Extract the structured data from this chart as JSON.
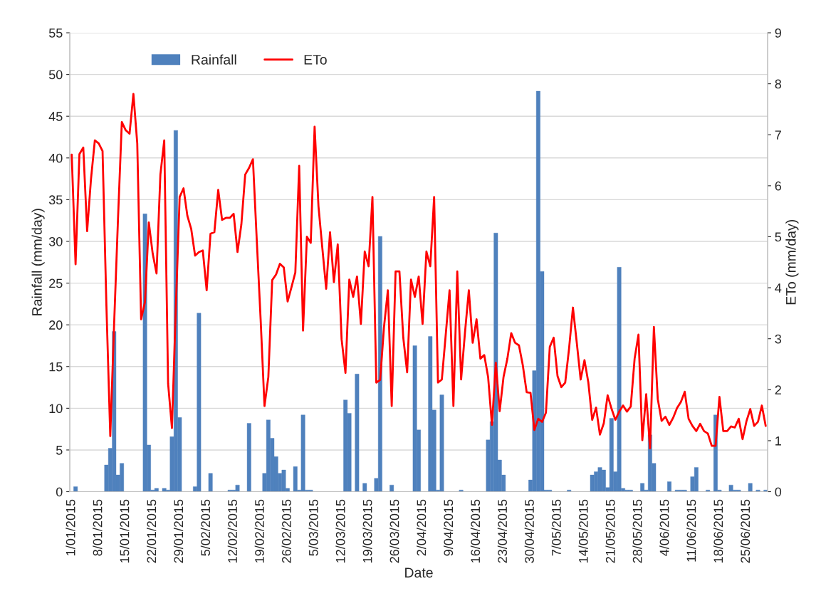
{
  "chart_data": {
    "type": "bar",
    "xlabel": "Date",
    "ylabel": "Rainfall (mm/day)",
    "y2label": "ETo (mm/day)",
    "categories": [
      "1/01/2015",
      null,
      null,
      null,
      null,
      null,
      null,
      "8/01/2015",
      null,
      null,
      null,
      null,
      null,
      null,
      "15/01/2015",
      null,
      null,
      null,
      null,
      null,
      null,
      "22/01/2015",
      null,
      null,
      null,
      null,
      null,
      null,
      "29/01/2015",
      null,
      null,
      null,
      null,
      null,
      null,
      "5/02/2015",
      null,
      null,
      null,
      null,
      null,
      null,
      "12/02/2015",
      null,
      null,
      null,
      null,
      null,
      null,
      "19/02/2015",
      null,
      null,
      null,
      null,
      null,
      null,
      "26/02/2015",
      null,
      null,
      null,
      null,
      null,
      null,
      "5/03/2015",
      null,
      null,
      null,
      null,
      null,
      null,
      "12/03/2015",
      null,
      null,
      null,
      null,
      null,
      null,
      "19/03/2015",
      null,
      null,
      null,
      null,
      null,
      null,
      "26/03/2015",
      null,
      null,
      null,
      null,
      null,
      null,
      "2/04/2015",
      null,
      null,
      null,
      null,
      null,
      null,
      "9/04/2015",
      null,
      null,
      null,
      null,
      null,
      null,
      "16/04/2015",
      null,
      null,
      null,
      null,
      null,
      null,
      "23/04/2015",
      null,
      null,
      null,
      null,
      null,
      null,
      "30/04/2015",
      null,
      null,
      null,
      null,
      null,
      null,
      "7/05/2015",
      null,
      null,
      null,
      null,
      null,
      null,
      "14/05/2015",
      null,
      null,
      null,
      null,
      null,
      null,
      "21/05/2015",
      null,
      null,
      null,
      null,
      null,
      null,
      "28/05/2015",
      null,
      null,
      null,
      null,
      null,
      null,
      "4/06/2015",
      null,
      null,
      null,
      null,
      null,
      null,
      "11/06/2015",
      null,
      null,
      null,
      null,
      null,
      null,
      "18/06/2015",
      null,
      null,
      null,
      null,
      null,
      null,
      "25/06/2015",
      null,
      null,
      null,
      null,
      null
    ],
    "series": [
      {
        "name": "Rainfall",
        "axis": "y",
        "color": "#4f81bd",
        "values": [
          0,
          0.6,
          0,
          0,
          0,
          0,
          0,
          0,
          0,
          3.2,
          5.2,
          19.2,
          2.0,
          3.4,
          0,
          0,
          0,
          0,
          0,
          33.3,
          5.6,
          0.2,
          0.4,
          0,
          0.4,
          0.2,
          6.6,
          43.3,
          8.9,
          0,
          0,
          0,
          0.6,
          21.4,
          0,
          0,
          2.2,
          0,
          0,
          0,
          0,
          0.2,
          0.2,
          0.8,
          0,
          0,
          8.2,
          0,
          0,
          0,
          2.2,
          8.6,
          6.4,
          4.2,
          2.2,
          2.6,
          0.4,
          0,
          3.0,
          0.2,
          9.2,
          0.2,
          0.2,
          0,
          0,
          0,
          0,
          0,
          0,
          0,
          0,
          11.0,
          9.4,
          0,
          14.1,
          0,
          1.0,
          0,
          0,
          1.6,
          30.6,
          0,
          0,
          0.8,
          0,
          0,
          0,
          0,
          0,
          17.5,
          7.4,
          0,
          0,
          18.6,
          9.8,
          0.2,
          11.6,
          0,
          0,
          0,
          0,
          0.2,
          0,
          0,
          0,
          0,
          0,
          0,
          6.2,
          8.4,
          31.0,
          3.8,
          2.0,
          0,
          0,
          0,
          0,
          0,
          0,
          1.4,
          14.5,
          48.0,
          26.4,
          0.2,
          0.2,
          0,
          0,
          0,
          0,
          0.2,
          0,
          0,
          0,
          0,
          0,
          2.0,
          2.4,
          2.9,
          2.6,
          0.5,
          8.8,
          2.4,
          26.9,
          0.4,
          0.2,
          0.2,
          0,
          0,
          1.0,
          0.2,
          6.8,
          3.4,
          0,
          0,
          0,
          1.2,
          0,
          0.2,
          0.2,
          0.2,
          0,
          1.8,
          2.9,
          0,
          0,
          0.2,
          0,
          9.2,
          0.2,
          0,
          0,
          0.8,
          0.2,
          0.2,
          0,
          0,
          1.0,
          0,
          0.2,
          0,
          0.2
        ]
      },
      {
        "name": "ETo",
        "type": "line",
        "axis": "y2",
        "color": "#ff0000",
        "values": [
          6.61,
          4.46,
          6.62,
          6.75,
          5.11,
          6.13,
          6.89,
          6.83,
          6.68,
          3.65,
          1.09,
          3.29,
          5.34,
          7.25,
          7.09,
          7.02,
          7.8,
          6.83,
          3.38,
          3.72,
          5.28,
          4.67,
          4.28,
          6.22,
          6.89,
          2.12,
          1.25,
          3.6,
          5.78,
          5.95,
          5.41,
          5.15,
          4.63,
          4.7,
          4.73,
          3.95,
          5.06,
          5.09,
          5.92,
          5.33,
          5.37,
          5.37,
          5.45,
          4.7,
          5.24,
          6.22,
          6.35,
          6.52,
          4.93,
          3.38,
          1.68,
          2.25,
          4.15,
          4.26,
          4.47,
          4.4,
          3.73,
          4.01,
          4.3,
          6.39,
          3.16,
          5.0,
          4.88,
          7.16,
          5.6,
          4.78,
          3.98,
          5.09,
          4.11,
          4.85,
          2.99,
          2.33,
          4.16,
          3.82,
          4.22,
          3.29,
          4.71,
          4.42,
          5.78,
          2.14,
          2.19,
          3.23,
          3.95,
          1.68,
          4.32,
          4.32,
          3.02,
          2.34,
          4.16,
          3.82,
          4.22,
          3.29,
          4.71,
          4.42,
          5.78,
          2.14,
          2.2,
          3.07,
          3.95,
          1.68,
          4.32,
          2.2,
          3.12,
          3.95,
          2.92,
          3.38,
          2.61,
          2.68,
          2.25,
          1.31,
          2.53,
          1.58,
          2.25,
          2.61,
          3.11,
          2.92,
          2.87,
          2.48,
          1.95,
          1.94,
          1.21,
          1.43,
          1.37,
          1.55,
          2.84,
          3.02,
          2.27,
          2.05,
          2.14,
          2.81,
          3.61,
          2.92,
          2.2,
          2.58,
          2.14,
          1.41,
          1.65,
          1.12,
          1.34,
          1.89,
          1.63,
          1.41,
          1.57,
          1.69,
          1.57,
          1.67,
          2.61,
          3.08,
          1.01,
          1.91,
          0.85,
          3.23,
          1.82,
          1.39,
          1.47,
          1.31,
          1.45,
          1.64,
          1.76,
          1.96,
          1.43,
          1.29,
          1.19,
          1.33,
          1.19,
          1.14,
          0.9,
          0.9,
          1.86,
          1.19,
          1.19,
          1.28,
          1.26,
          1.43,
          1.03,
          1.38,
          1.62,
          1.29,
          1.37,
          1.69,
          1.29
        ]
      }
    ],
    "ylim": [
      0,
      55
    ],
    "yticks": [
      0,
      5,
      10,
      15,
      20,
      25,
      30,
      35,
      40,
      45,
      50,
      55
    ],
    "y2lim": [
      0,
      9
    ],
    "y2ticks": [
      0,
      1,
      2,
      3,
      4,
      5,
      6,
      7,
      8,
      9
    ],
    "grid": "y",
    "legend": "top left"
  }
}
